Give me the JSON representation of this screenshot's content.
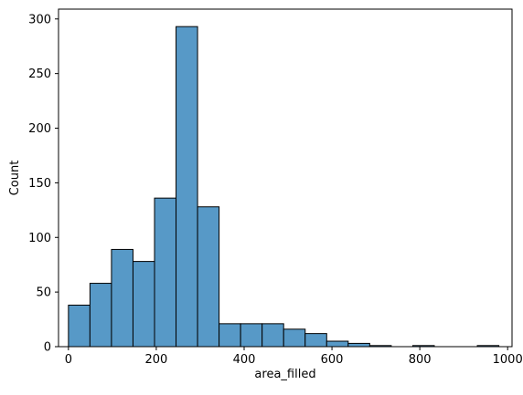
{
  "chart_data": {
    "type": "bar",
    "title": "",
    "xlabel": "area_filled",
    "ylabel": "Count",
    "xlim": [
      -22.6,
      1010
    ],
    "ylim": [
      0,
      309
    ],
    "xticks": [
      0,
      200,
      400,
      600,
      800,
      1000
    ],
    "yticks": [
      0,
      50,
      100,
      150,
      200,
      250,
      300
    ],
    "xtick_labels": [
      "0",
      "200",
      "400",
      "600",
      "800",
      "1000"
    ],
    "ytick_labels": [
      "0",
      "50",
      "100",
      "150",
      "200",
      "250",
      "300"
    ],
    "bin_width": 49.0,
    "bins_start": [
      0,
      49,
      98,
      147,
      196,
      245,
      294,
      343,
      392,
      441,
      490,
      539,
      588,
      637,
      686,
      735,
      784,
      833,
      882,
      931
    ],
    "values": [
      38,
      58,
      89,
      78,
      136,
      293,
      128,
      21,
      21,
      21,
      16,
      12,
      5,
      3,
      1,
      0,
      1,
      0,
      0,
      1
    ],
    "grid": false,
    "bar_color": "#5799c7",
    "edge_color": "#000000"
  }
}
